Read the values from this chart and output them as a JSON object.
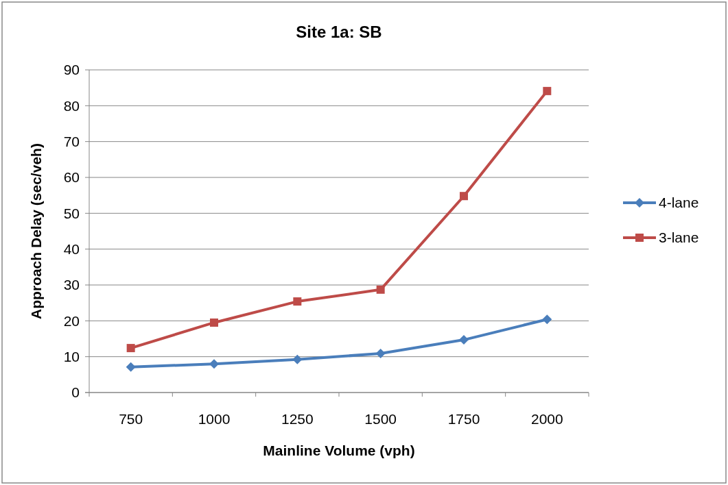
{
  "chart_data": {
    "type": "line",
    "title": "Site 1a: SB",
    "xlabel": "Mainline Volume (vph)",
    "ylabel": "Approach Delay (sec/veh)",
    "categories": [
      "750",
      "1000",
      "1250",
      "1500",
      "1750",
      "2000"
    ],
    "series": [
      {
        "name": "4-lane",
        "color": "#4a7ebb",
        "marker": "diamond",
        "values": [
          7.1,
          8.0,
          9.2,
          10.9,
          14.7,
          20.4
        ]
      },
      {
        "name": "3-lane",
        "color": "#be4b48",
        "marker": "square",
        "values": [
          12.4,
          19.5,
          25.4,
          28.7,
          54.8,
          84.1
        ]
      }
    ],
    "ylim": [
      0,
      90
    ],
    "yticks": [
      0,
      10,
      20,
      30,
      40,
      50,
      60,
      70,
      80,
      90
    ],
    "grid": "y",
    "legend": "right",
    "line_style": "solid"
  }
}
